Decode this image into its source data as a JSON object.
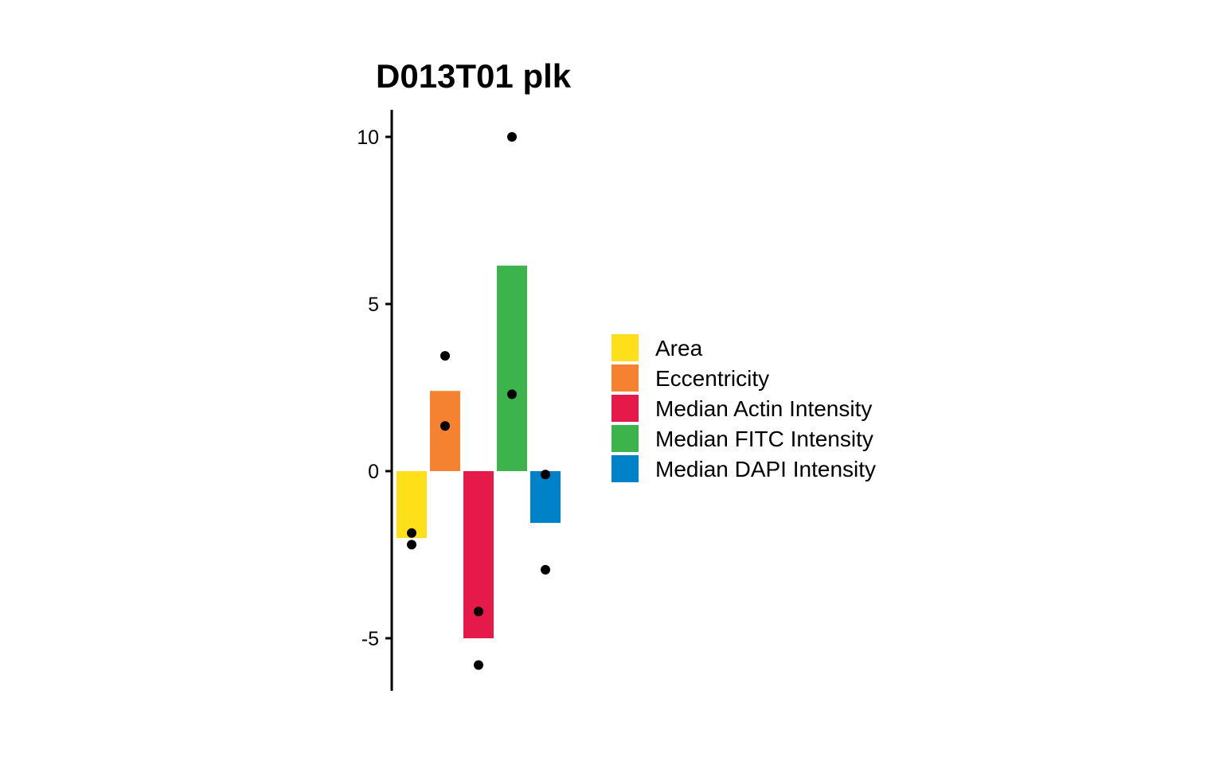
{
  "chart_data": {
    "type": "bar",
    "title": "D013T01 plk",
    "xlabel": "",
    "ylabel": "",
    "ylim": [
      -6.6,
      10.8
    ],
    "y_ticks": [
      "10",
      "5",
      "0",
      "-5"
    ],
    "y_tick_values": [
      10,
      5,
      0,
      -5
    ],
    "categories": [
      "Area",
      "Eccentricity",
      "Median Actin Intensity",
      "Median FITC Intensity",
      "Median DAPI Intensity"
    ],
    "values": [
      -2.0,
      2.4,
      -5.0,
      6.15,
      -1.55
    ],
    "colors": [
      "#FDE01A",
      "#F58231",
      "#E6194B",
      "#3CB44B",
      "#0082C8"
    ],
    "points": [
      {
        "category": "Area",
        "values": [
          -1.85,
          -2.2
        ]
      },
      {
        "category": "Eccentricity",
        "values": [
          3.45,
          1.35
        ]
      },
      {
        "category": "Median Actin Intensity",
        "values": [
          -4.2,
          -5.8
        ]
      },
      {
        "category": "Median FITC Intensity",
        "values": [
          10.0,
          2.3
        ]
      },
      {
        "category": "Median DAPI Intensity",
        "values": [
          -0.1,
          -2.95
        ]
      }
    ],
    "legend": {
      "position": "right",
      "entries": [
        "Area",
        "Eccentricity",
        "Median Actin Intensity",
        "Median FITC Intensity",
        "Median DAPI Intensity"
      ]
    },
    "grid": false
  }
}
